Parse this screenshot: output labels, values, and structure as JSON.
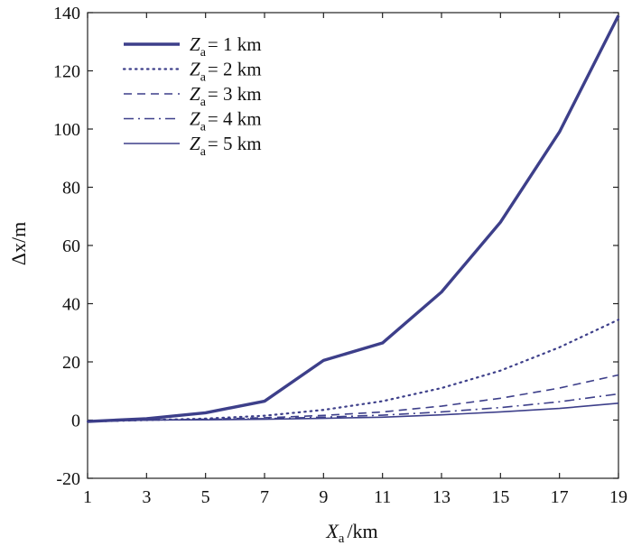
{
  "chart_data": {
    "type": "line",
    "x": [
      1,
      3,
      5,
      7,
      9,
      11,
      13,
      15,
      17,
      19
    ],
    "xlim": [
      1,
      19
    ],
    "ylim": [
      -20,
      140
    ],
    "xticks": [
      1,
      3,
      5,
      7,
      9,
      11,
      13,
      15,
      17,
      19
    ],
    "yticks": [
      -20,
      0,
      20,
      40,
      60,
      80,
      100,
      120,
      140
    ],
    "xlabel": {
      "symbol": "X",
      "subscript": "a",
      "unit": "/km"
    },
    "ylabel": "Δx/m",
    "grid": false,
    "legend_position": "top-left",
    "color": "#3d3f8a",
    "series": [
      {
        "name": "Za = 1 km",
        "symbol": "Z",
        "subscript": "a",
        "value_text": "= 1 km",
        "style": "thick-solid",
        "values": [
          -0.5,
          0.5,
          2.5,
          6.5,
          20.5,
          26.5,
          44,
          68,
          99,
          139
        ]
      },
      {
        "name": "Za = 2 km",
        "symbol": "Z",
        "subscript": "a",
        "value_text": "= 2 km",
        "style": "dotted",
        "values": [
          -0.5,
          0,
          0.5,
          1.5,
          3.5,
          6.5,
          11,
          17,
          25,
          34.5
        ]
      },
      {
        "name": "Za = 3 km",
        "symbol": "Z",
        "subscript": "a",
        "value_text": "= 3 km",
        "style": "dashed",
        "values": [
          -0.5,
          0,
          0.3,
          0.8,
          1.6,
          2.8,
          4.8,
          7.5,
          11,
          15.5
        ]
      },
      {
        "name": "Za = 4 km",
        "symbol": "Z",
        "subscript": "a",
        "value_text": "= 4 km",
        "style": "dash-dot",
        "values": [
          -0.5,
          0,
          0.2,
          0.5,
          1.0,
          1.7,
          2.8,
          4.3,
          6.3,
          9
        ]
      },
      {
        "name": "Za = 5 km",
        "symbol": "Z",
        "subscript": "a",
        "value_text": "= 5 km",
        "style": "thin-solid",
        "values": [
          -0.5,
          0,
          0.1,
          0.3,
          0.6,
          1.0,
          1.8,
          2.8,
          4.0,
          5.8
        ]
      }
    ]
  }
}
